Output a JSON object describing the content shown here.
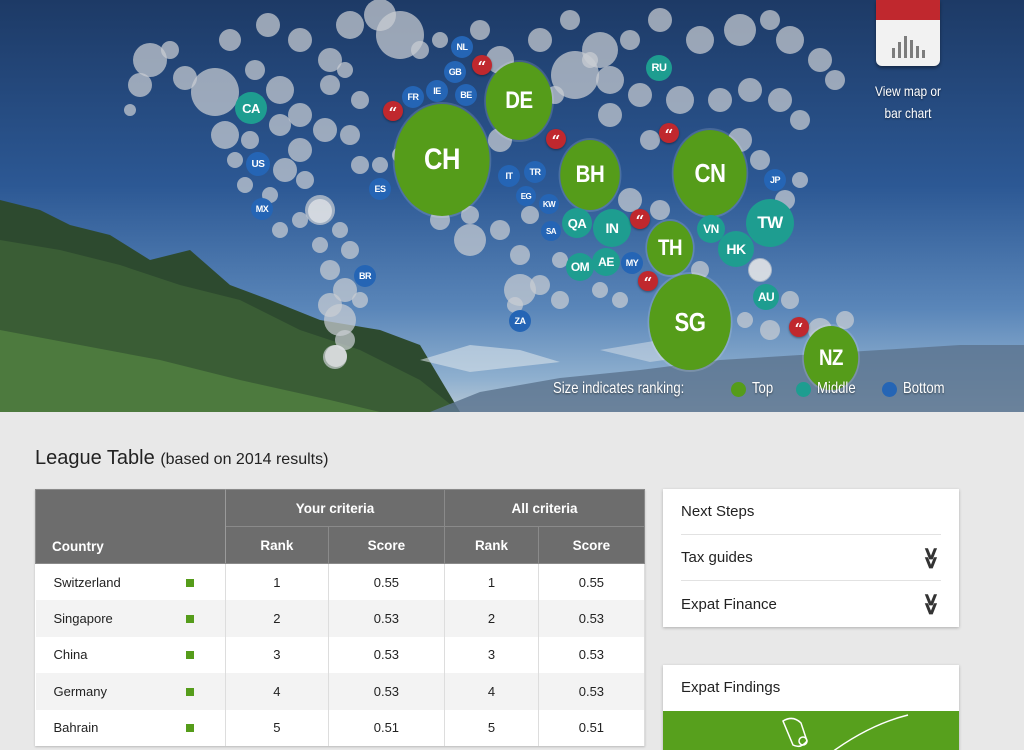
{
  "map": {
    "countries": [
      {
        "code": "CH",
        "tier": "top"
      },
      {
        "code": "SG",
        "tier": "top"
      },
      {
        "code": "CN",
        "tier": "top"
      },
      {
        "code": "DE",
        "tier": "top"
      },
      {
        "code": "BH",
        "tier": "top"
      },
      {
        "code": "TH",
        "tier": "top"
      },
      {
        "code": "NZ",
        "tier": "top"
      },
      {
        "code": "TW",
        "tier": "middle"
      },
      {
        "code": "IN",
        "tier": "middle"
      },
      {
        "code": "HK",
        "tier": "middle"
      },
      {
        "code": "QA",
        "tier": "middle"
      },
      {
        "code": "AE",
        "tier": "middle"
      },
      {
        "code": "OM",
        "tier": "middle"
      },
      {
        "code": "VN",
        "tier": "middle"
      },
      {
        "code": "CA",
        "tier": "middle"
      },
      {
        "code": "RU",
        "tier": "middle"
      },
      {
        "code": "AU",
        "tier": "middle"
      },
      {
        "code": "NL",
        "tier": "bottom"
      },
      {
        "code": "GB",
        "tier": "bottom"
      },
      {
        "code": "FR",
        "tier": "bottom"
      },
      {
        "code": "IE",
        "tier": "bottom"
      },
      {
        "code": "BE",
        "tier": "bottom"
      },
      {
        "code": "US",
        "tier": "bottom"
      },
      {
        "code": "MX",
        "tier": "bottom"
      },
      {
        "code": "ES",
        "tier": "bottom"
      },
      {
        "code": "IT",
        "tier": "bottom"
      },
      {
        "code": "TR",
        "tier": "bottom"
      },
      {
        "code": "EG",
        "tier": "bottom"
      },
      {
        "code": "KW",
        "tier": "bottom"
      },
      {
        "code": "SA",
        "tier": "bottom"
      },
      {
        "code": "MY",
        "tier": "bottom"
      },
      {
        "code": "JP",
        "tier": "bottom"
      },
      {
        "code": "BR",
        "tier": "bottom"
      },
      {
        "code": "ZA",
        "tier": "bottom"
      }
    ],
    "quote_glyph": "“",
    "view_label": "View map or bar chart",
    "legend": {
      "caption": "Size indicates ranking:",
      "items": [
        {
          "label": "Top",
          "color": "#559c1a"
        },
        {
          "label": "Middle",
          "color": "#1e9d90"
        },
        {
          "label": "Bottom",
          "color": "#2565b5"
        }
      ]
    }
  },
  "league": {
    "title": "League Table",
    "subtitle": "(based on 2014 results)",
    "headers": {
      "country": "Country",
      "your_criteria": "Your criteria",
      "all_criteria": "All criteria",
      "rank": "Rank",
      "score": "Score"
    },
    "rows": [
      {
        "country": "Switzerland",
        "your_rank": "1",
        "your_score": "0.55",
        "all_rank": "1",
        "all_score": "0.55"
      },
      {
        "country": "Singapore",
        "your_rank": "2",
        "your_score": "0.53",
        "all_rank": "2",
        "all_score": "0.53"
      },
      {
        "country": "China",
        "your_rank": "3",
        "your_score": "0.53",
        "all_rank": "3",
        "all_score": "0.53"
      },
      {
        "country": "Germany",
        "your_rank": "4",
        "your_score": "0.53",
        "all_rank": "4",
        "all_score": "0.53"
      },
      {
        "country": "Bahrain",
        "your_rank": "5",
        "your_score": "0.51",
        "all_rank": "5",
        "all_score": "0.51"
      }
    ]
  },
  "next_steps": {
    "title": "Next Steps",
    "items": [
      {
        "label": "Tax guides"
      },
      {
        "label": "Expat Finance"
      }
    ]
  },
  "findings": {
    "title": "Expat Findings"
  },
  "colors": {
    "top": "#559c1a",
    "middle": "#1e9d90",
    "bottom": "#2565b5",
    "accent_red": "#c0282e"
  }
}
